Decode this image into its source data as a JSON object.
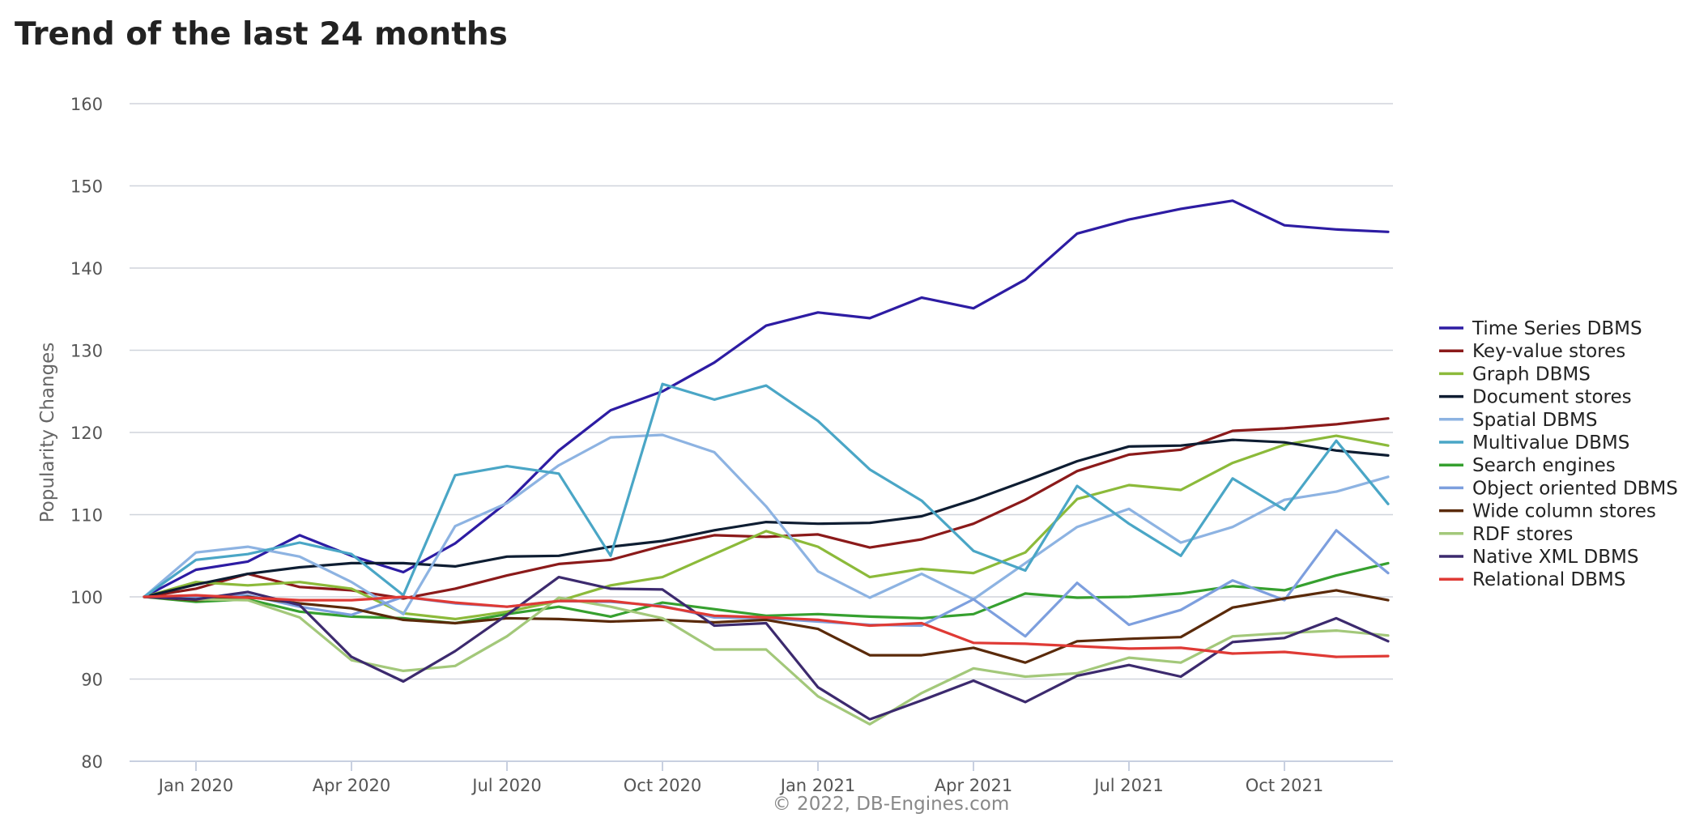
{
  "page": {
    "title": "Trend of the last 24 months"
  },
  "chart_data": {
    "type": "line",
    "title": "Trend of the last 24 months",
    "xlabel": "",
    "ylabel": "Popularity Changes",
    "credit": "© 2022, DB-Engines.com",
    "ylim": [
      80,
      160
    ],
    "yticks": [
      80,
      90,
      100,
      110,
      120,
      130,
      140,
      150,
      160
    ],
    "x": [
      "2019-12",
      "2020-01",
      "2020-02",
      "2020-03",
      "2020-04",
      "2020-05",
      "2020-06",
      "2020-07",
      "2020-08",
      "2020-09",
      "2020-10",
      "2020-11",
      "2020-12",
      "2021-01",
      "2021-02",
      "2021-03",
      "2021-04",
      "2021-05",
      "2021-06",
      "2021-07",
      "2021-08",
      "2021-09",
      "2021-10",
      "2021-11",
      "2021-12"
    ],
    "xticks": [
      "2020-01",
      "2020-04",
      "2020-07",
      "2020-10",
      "2021-01",
      "2021-04",
      "2021-07",
      "2021-10"
    ],
    "xtick_labels": [
      "Jan 2020",
      "Apr 2020",
      "Jul 2020",
      "Oct 2020",
      "Jan 2021",
      "Apr 2021",
      "Jul 2021",
      "Oct 2021"
    ],
    "grid": true,
    "legend_position": "right",
    "series": [
      {
        "name": "Time Series DBMS",
        "color": "#2d1ca3",
        "values": [
          100,
          103.3,
          104.3,
          107.5,
          105.0,
          103.0,
          106.5,
          111.5,
          117.8,
          122.7,
          125.0,
          128.5,
          133.0,
          134.6,
          133.9,
          136.4,
          135.1,
          138.6,
          144.2,
          145.9,
          147.2,
          148.2,
          145.2,
          144.7,
          144.4
        ]
      },
      {
        "name": "Key-value stores",
        "color": "#8b1a1a",
        "values": [
          100,
          101.0,
          102.8,
          101.2,
          100.8,
          99.8,
          101.0,
          102.6,
          104.0,
          104.5,
          106.2,
          107.5,
          107.3,
          107.6,
          106.0,
          107.0,
          108.9,
          111.8,
          115.3,
          117.3,
          117.9,
          120.2,
          120.5,
          121.0,
          121.7
        ]
      },
      {
        "name": "Graph DBMS",
        "color": "#8cba3a",
        "values": [
          100,
          101.8,
          101.4,
          101.8,
          101.0,
          98.0,
          97.3,
          98.2,
          99.5,
          101.4,
          102.4,
          105.2,
          108.0,
          106.1,
          102.4,
          103.4,
          102.9,
          105.4,
          111.9,
          113.6,
          113.0,
          116.3,
          118.5,
          119.6,
          118.4
        ]
      },
      {
        "name": "Document stores",
        "color": "#0e1d32",
        "values": [
          100,
          101.5,
          102.8,
          103.6,
          104.1,
          104.1,
          103.7,
          104.9,
          105.0,
          106.1,
          106.8,
          108.1,
          109.1,
          108.9,
          109.0,
          109.8,
          111.8,
          114.1,
          116.5,
          118.3,
          118.4,
          119.1,
          118.8,
          117.8,
          117.2
        ]
      },
      {
        "name": "Spatial DBMS",
        "color": "#8db3e2",
        "values": [
          100,
          105.4,
          106.1,
          104.9,
          101.8,
          97.9,
          108.6,
          111.4,
          116.0,
          119.4,
          119.7,
          117.6,
          111.0,
          103.1,
          99.9,
          102.8,
          99.7,
          104.1,
          108.5,
          110.7,
          106.6,
          108.5,
          111.8,
          112.8,
          114.6
        ]
      },
      {
        "name": "Multivalue DBMS",
        "color": "#4aa6c6",
        "values": [
          100,
          104.5,
          105.2,
          106.6,
          105.2,
          100.2,
          114.8,
          115.9,
          115.0,
          105.0,
          125.9,
          124.0,
          125.7,
          121.4,
          115.5,
          111.7,
          105.6,
          103.2,
          113.5,
          108.9,
          105.0,
          114.4,
          110.6,
          119.0,
          111.3
        ]
      },
      {
        "name": "Search engines",
        "color": "#36a02f",
        "values": [
          100,
          99.4,
          99.7,
          98.2,
          97.6,
          97.4,
          96.8,
          97.9,
          98.8,
          97.6,
          99.3,
          98.5,
          97.7,
          97.9,
          97.6,
          97.4,
          97.9,
          100.4,
          99.9,
          100.0,
          100.4,
          101.3,
          100.8,
          102.6,
          104.1
        ]
      },
      {
        "name": "Object oriented DBMS",
        "color": "#7d9fde",
        "values": [
          100,
          100.0,
          100.2,
          98.8,
          97.8,
          100.0,
          99.2,
          98.8,
          99.5,
          99.4,
          98.9,
          97.5,
          97.4,
          97.0,
          96.6,
          96.5,
          99.7,
          95.2,
          101.7,
          96.6,
          98.4,
          102.0,
          99.6,
          108.1,
          102.9
        ]
      },
      {
        "name": "Wide column stores",
        "color": "#5a2a0a",
        "values": [
          100,
          99.6,
          100.0,
          99.2,
          98.6,
          97.2,
          96.8,
          97.4,
          97.3,
          97.0,
          97.2,
          96.9,
          97.2,
          96.1,
          92.9,
          92.9,
          93.8,
          92.0,
          94.6,
          94.9,
          95.1,
          98.7,
          99.8,
          100.8,
          99.6
        ]
      },
      {
        "name": "RDF stores",
        "color": "#a3c87a",
        "values": [
          100,
          99.7,
          99.6,
          97.5,
          92.3,
          91.0,
          91.6,
          95.2,
          99.9,
          98.8,
          97.4,
          93.6,
          93.6,
          87.9,
          84.5,
          88.3,
          91.3,
          90.3,
          90.7,
          92.6,
          92.0,
          95.2,
          95.6,
          95.9,
          95.3
        ]
      },
      {
        "name": "Native XML DBMS",
        "color": "#3c2a6e",
        "values": [
          100,
          99.7,
          100.6,
          99.0,
          92.7,
          89.7,
          93.4,
          97.8,
          102.4,
          101.0,
          100.9,
          96.5,
          96.8,
          89.0,
          85.1,
          87.4,
          89.8,
          87.2,
          90.4,
          91.7,
          90.3,
          94.5,
          95.0,
          97.4,
          94.6
        ]
      },
      {
        "name": "Relational DBMS",
        "color": "#df3a35",
        "values": [
          100,
          100.2,
          99.9,
          99.6,
          99.6,
          100.0,
          99.3,
          98.8,
          99.5,
          99.5,
          98.8,
          97.7,
          97.5,
          97.2,
          96.5,
          96.8,
          94.4,
          94.3,
          94.0,
          93.7,
          93.8,
          93.1,
          93.3,
          92.7,
          92.8
        ]
      }
    ]
  }
}
